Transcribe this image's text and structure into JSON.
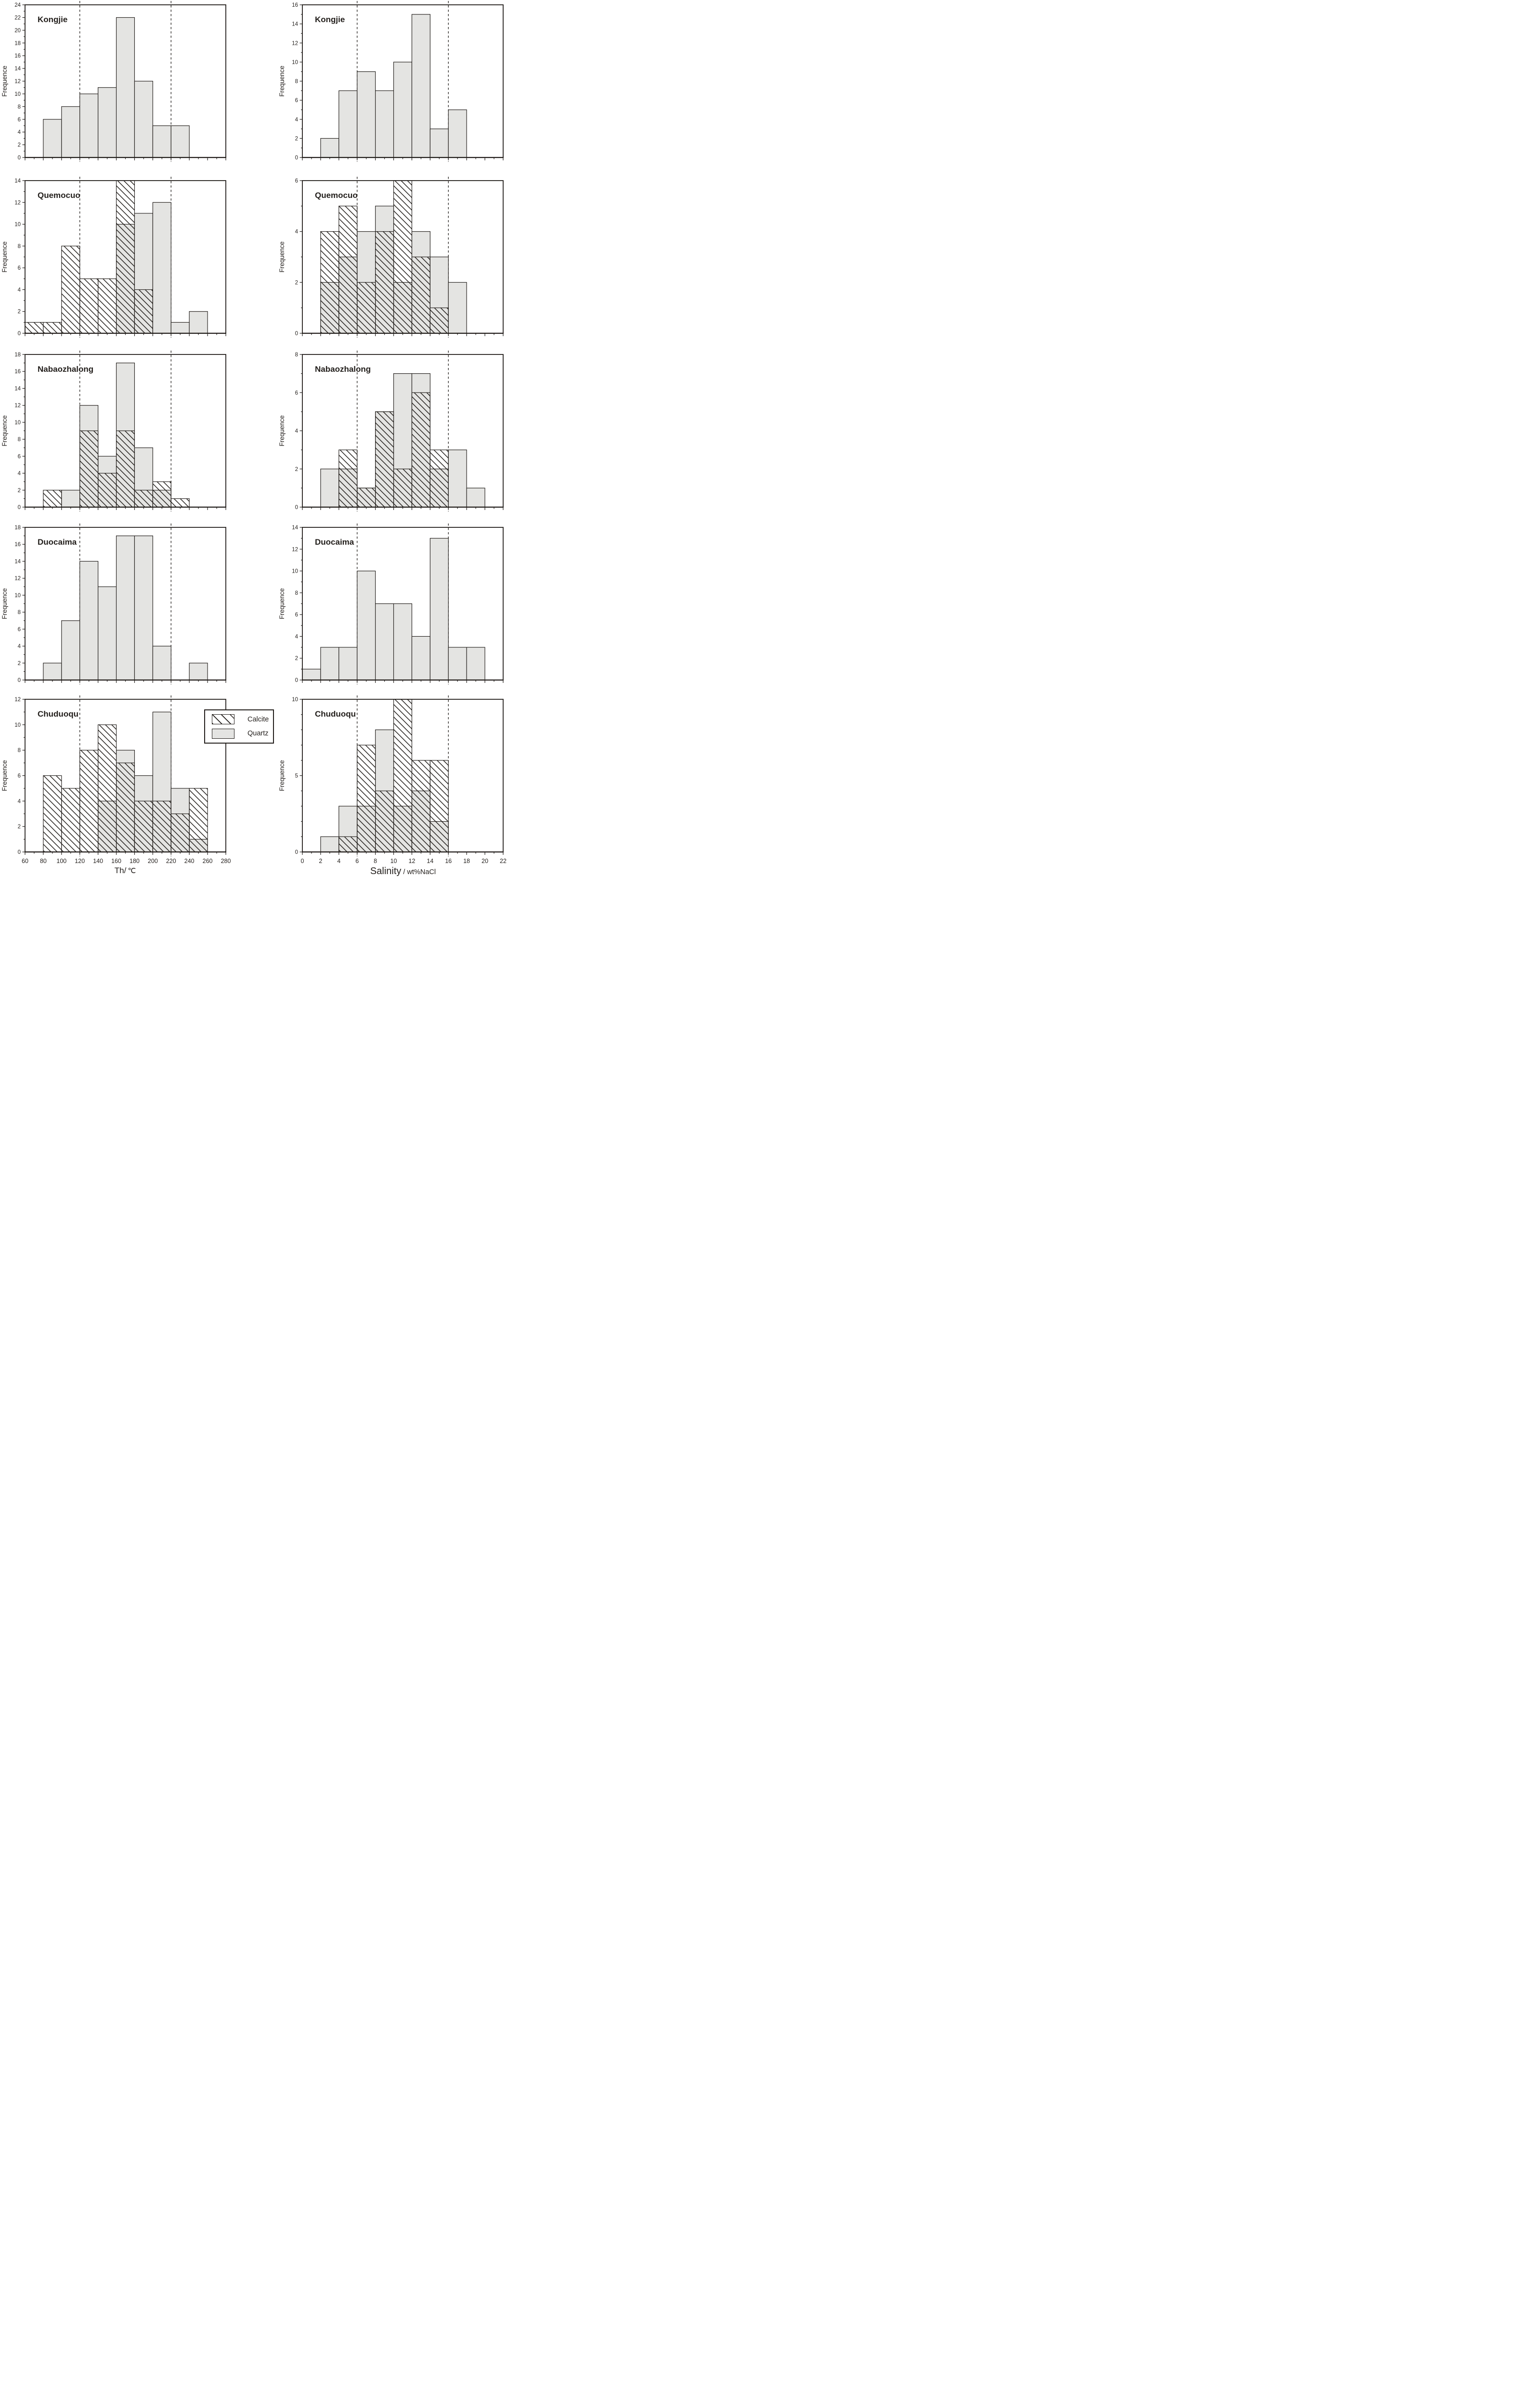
{
  "figure": {
    "background": "#ffffff",
    "colors": {
      "line": "#221e1b",
      "quartz_fill": "#e4e4e2",
      "calcite_fill": "#ffffff",
      "text": "#221e1b"
    },
    "ylabel": "Frequence",
    "x_axis_titles": {
      "th": "Th/",
      "th_unit": "℃",
      "salinity": "Salinity",
      "salinity_unit": "/ wt%NaCl"
    },
    "legend": {
      "items": [
        {
          "label": "Calcite",
          "pattern": "hatch"
        },
        {
          "label": "Quartz",
          "pattern": "solid"
        }
      ]
    }
  },
  "chart_data": [
    {
      "id": "kongjie-th",
      "type": "bar",
      "row": 0,
      "col": 0,
      "title": "Kongjie",
      "ylabel": "Frequence",
      "ylim": [
        0,
        24
      ],
      "ytick": 2,
      "yminor": 1,
      "xlim": [
        60,
        280
      ],
      "xtick": 20,
      "xminor": 10,
      "bin_start": 80,
      "bin_width": 20,
      "dashed_lines": [
        120,
        220
      ],
      "show_x_labels": false,
      "series": [
        {
          "name": "Quartz",
          "pattern": "solid",
          "values": [
            6,
            8,
            10,
            11,
            22,
            12,
            5,
            5
          ]
        }
      ]
    },
    {
      "id": "kongjie-sal",
      "type": "bar",
      "row": 0,
      "col": 1,
      "title": "Kongjie",
      "ylabel": "Frequence",
      "ylim": [
        0,
        16
      ],
      "ytick": 2,
      "yminor": 1,
      "xlim": [
        0,
        22
      ],
      "xtick": 2,
      "xminor": 1,
      "bin_start": 2,
      "bin_width": 2,
      "dashed_lines": [
        6,
        16
      ],
      "show_x_labels": false,
      "series": [
        {
          "name": "Quartz",
          "pattern": "solid",
          "values": [
            2,
            7,
            9,
            7,
            10,
            15,
            3,
            5
          ]
        }
      ]
    },
    {
      "id": "quemocuo-th",
      "type": "bar",
      "row": 1,
      "col": 0,
      "title": "Quemocuo",
      "ylabel": "Frequence",
      "ylim": [
        0,
        14
      ],
      "ytick": 2,
      "yminor": 1,
      "xlim": [
        60,
        280
      ],
      "xtick": 20,
      "xminor": 10,
      "bin_start": 60,
      "bin_width": 20,
      "dashed_lines": [
        120,
        220
      ],
      "show_x_labels": false,
      "series": [
        {
          "name": "Quartz",
          "pattern": "solid",
          "values": [
            0,
            0,
            0,
            0,
            0,
            10,
            11,
            12,
            1,
            2
          ]
        },
        {
          "name": "Calcite",
          "pattern": "hatch",
          "values": [
            1,
            1,
            8,
            5,
            5,
            14,
            4,
            0,
            0,
            0
          ]
        }
      ]
    },
    {
      "id": "quemocuo-sal",
      "type": "bar",
      "row": 1,
      "col": 1,
      "title": "Quemocuo",
      "ylabel": "Frequence",
      "ylim": [
        0,
        6
      ],
      "ytick": 2,
      "yminor": 1,
      "xlim": [
        0,
        22
      ],
      "xtick": 2,
      "xminor": 1,
      "bin_start": 2,
      "bin_width": 2,
      "dashed_lines": [
        6,
        16
      ],
      "show_x_labels": false,
      "series": [
        {
          "name": "Quartz",
          "pattern": "solid",
          "values": [
            2,
            3,
            4,
            5,
            2,
            4,
            3,
            2
          ]
        },
        {
          "name": "Calcite",
          "pattern": "hatch",
          "values": [
            4,
            5,
            2,
            4,
            6,
            3,
            1,
            0
          ]
        }
      ]
    },
    {
      "id": "nabaozhalong-th",
      "type": "bar",
      "row": 2,
      "col": 0,
      "title": "Nabaozhalong",
      "ylabel": "Frequence",
      "ylim": [
        0,
        18
      ],
      "ytick": 2,
      "yminor": 1,
      "xlim": [
        60,
        280
      ],
      "xtick": 20,
      "xminor": 10,
      "bin_start": 80,
      "bin_width": 20,
      "dashed_lines": [
        120,
        220
      ],
      "show_x_labels": false,
      "series": [
        {
          "name": "Quartz",
          "pattern": "solid",
          "values": [
            0,
            2,
            12,
            6,
            17,
            7,
            2,
            0
          ]
        },
        {
          "name": "Calcite",
          "pattern": "hatch",
          "values": [
            2,
            0,
            9,
            4,
            9,
            2,
            3,
            1
          ]
        }
      ]
    },
    {
      "id": "nabaozhalong-sal",
      "type": "bar",
      "row": 2,
      "col": 1,
      "title": "Nabaozhalong",
      "ylabel": "Frequence",
      "ylim": [
        0,
        8
      ],
      "ytick": 2,
      "yminor": 1,
      "xlim": [
        0,
        22
      ],
      "xtick": 2,
      "xminor": 1,
      "bin_start": 2,
      "bin_width": 2,
      "dashed_lines": [
        6,
        16
      ],
      "show_x_labels": false,
      "series": [
        {
          "name": "Quartz",
          "pattern": "solid",
          "values": [
            2,
            2,
            1,
            5,
            7,
            7,
            2,
            3,
            1
          ]
        },
        {
          "name": "Calcite",
          "pattern": "hatch",
          "values": [
            0,
            3,
            1,
            5,
            2,
            6,
            3,
            0,
            0
          ]
        }
      ]
    },
    {
      "id": "duocaima-th",
      "type": "bar",
      "row": 3,
      "col": 0,
      "title": "Duocaima",
      "ylabel": "Frequence",
      "ylim": [
        0,
        18
      ],
      "ytick": 2,
      "yminor": 1,
      "xlim": [
        60,
        280
      ],
      "xtick": 20,
      "xminor": 10,
      "bin_start": 80,
      "bin_width": 20,
      "dashed_lines": [
        120,
        220
      ],
      "show_x_labels": false,
      "series": [
        {
          "name": "Quartz",
          "pattern": "solid",
          "values": [
            2,
            7,
            14,
            11,
            17,
            17,
            4,
            0,
            2
          ]
        }
      ]
    },
    {
      "id": "duocaima-sal",
      "type": "bar",
      "row": 3,
      "col": 1,
      "title": "Duocaima",
      "ylabel": "Frequence",
      "ylim": [
        0,
        14
      ],
      "ytick": 2,
      "yminor": 1,
      "xlim": [
        0,
        22
      ],
      "xtick": 2,
      "xminor": 1,
      "bin_start": 0,
      "bin_width": 2,
      "dashed_lines": [
        6,
        16
      ],
      "show_x_labels": false,
      "series": [
        {
          "name": "Quartz",
          "pattern": "solid",
          "values": [
            1,
            3,
            3,
            10,
            7,
            7,
            4,
            13,
            3,
            3
          ]
        }
      ]
    },
    {
      "id": "chuduoqu-th",
      "type": "bar",
      "row": 4,
      "col": 0,
      "title": "Chuduoqu",
      "ylabel": "Frequence",
      "xlabel": "Th/℃",
      "ylim": [
        0,
        12
      ],
      "ytick": 2,
      "yminor": 1,
      "xlim": [
        60,
        280
      ],
      "xtick": 20,
      "xminor": 10,
      "bin_start": 80,
      "bin_width": 20,
      "dashed_lines": [
        120,
        220
      ],
      "show_x_labels": true,
      "series": [
        {
          "name": "Quartz",
          "pattern": "solid",
          "values": [
            0,
            0,
            0,
            4,
            8,
            6,
            11,
            5,
            1
          ]
        },
        {
          "name": "Calcite",
          "pattern": "hatch",
          "values": [
            6,
            5,
            8,
            10,
            7,
            4,
            4,
            3,
            5
          ]
        }
      ]
    },
    {
      "id": "chuduoqu-sal",
      "type": "bar",
      "row": 4,
      "col": 1,
      "title": "Chuduoqu",
      "ylabel": "Frequence",
      "xlabel": "Salinity / wt%NaCl",
      "ylim": [
        0,
        10
      ],
      "ytick": 5,
      "yminor": 1,
      "xlim": [
        0,
        22
      ],
      "xtick": 2,
      "xminor": 1,
      "bin_start": 2,
      "bin_width": 2,
      "dashed_lines": [
        6,
        16
      ],
      "show_x_labels": true,
      "series": [
        {
          "name": "Quartz",
          "pattern": "solid",
          "values": [
            1,
            3,
            3,
            8,
            3,
            4,
            2
          ]
        },
        {
          "name": "Calcite",
          "pattern": "hatch",
          "values": [
            0,
            1,
            7,
            4,
            10,
            6,
            6
          ]
        }
      ]
    }
  ]
}
